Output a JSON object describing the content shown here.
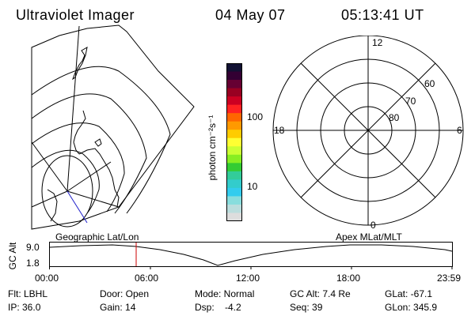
{
  "header": {
    "instrument": "Ultraviolet Imager",
    "date": "04 May 07",
    "time": "05:13:41 UT"
  },
  "colorbar": {
    "unit_label": "photon cm⁻²s⁻¹",
    "tick_labels": [
      "100",
      "10"
    ],
    "colors": [
      "#111133",
      "#330033",
      "#660033",
      "#990022",
      "#cc0022",
      "#ff2222",
      "#ff6600",
      "#ff9900",
      "#ffcc00",
      "#ffff33",
      "#ccff33",
      "#88ee22",
      "#33cc33",
      "#33cc99",
      "#33cccc",
      "#33ccee",
      "#88dddd",
      "#bbdddd",
      "#dddddd"
    ]
  },
  "polar_plot": {
    "mlt_labels": {
      "top": "12",
      "left": "18",
      "right": "6",
      "bottom": "0"
    },
    "lat_labels": [
      "60",
      "70",
      "80"
    ]
  },
  "timeline": {
    "left_title": "Geographic Lat/Lon",
    "right_title": "Apex MLat/MLT",
    "axis_label": "GC Alt",
    "y_ticks": [
      "9.0",
      "1.8"
    ],
    "x_ticks": [
      "00:00",
      "06:00",
      "12:00",
      "18:00",
      "23:59"
    ],
    "current_marker_color": "#cc0000"
  },
  "status": {
    "flt": "Flt: LBHL",
    "ip": "IP: 36.0",
    "door": "Door: Open",
    "gain": "Gain: 14",
    "mode": "Mode: Normal",
    "dsp": "Dsp:    -4.2",
    "gc_alt": "GC Alt: 7.4 Re",
    "seq": "Seq: 39",
    "glat": "GLat: -67.1",
    "glon": "GLon: 345.9"
  }
}
